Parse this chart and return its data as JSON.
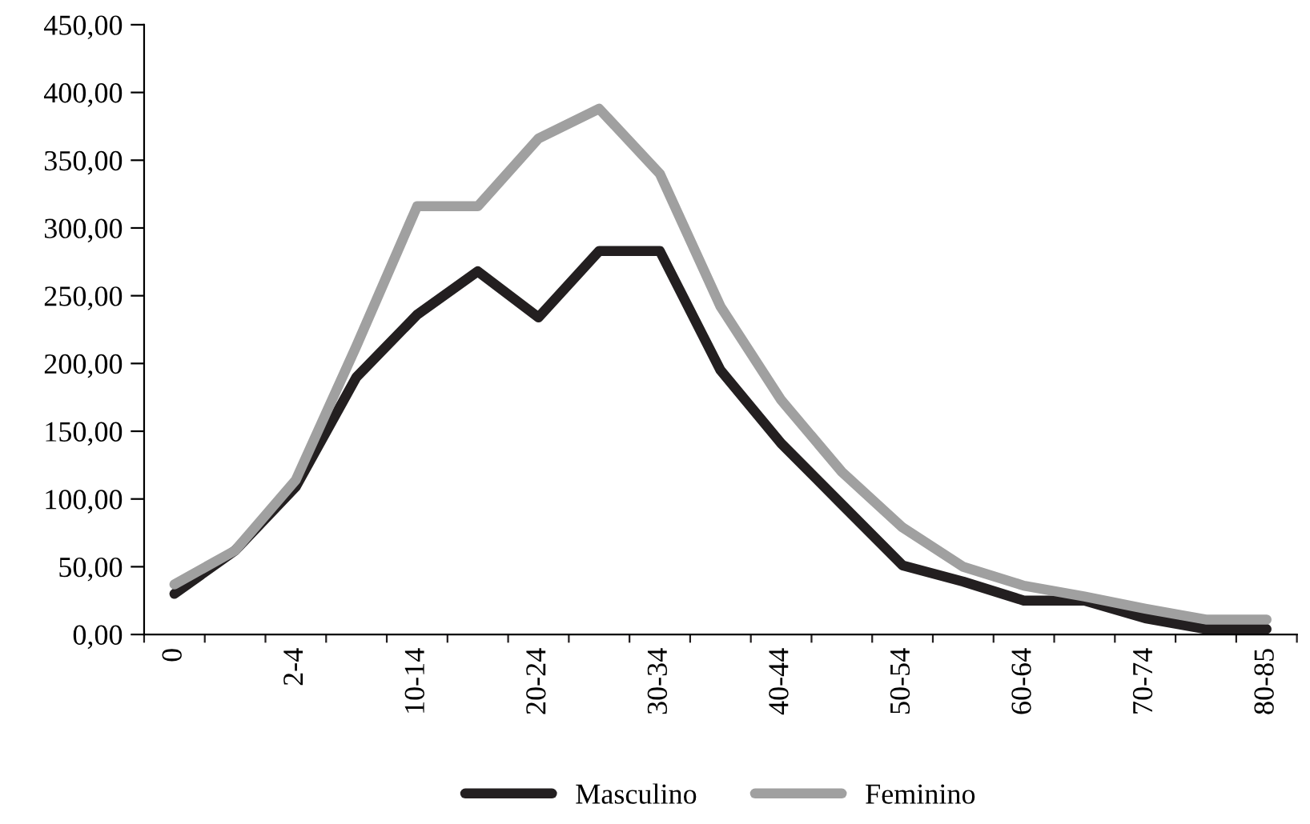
{
  "chart_data": {
    "type": "line",
    "categories": [
      "0",
      null,
      "2-4",
      null,
      "10-14",
      null,
      "20-24",
      null,
      "30-34",
      null,
      "40-44",
      null,
      "50-54",
      null,
      "60-64",
      null,
      "70-74",
      null,
      "80-85"
    ],
    "series": [
      {
        "name": "Masculino",
        "color": "#231f20",
        "values": [
          30,
          62,
          109,
          190,
          236,
          268,
          234,
          283,
          283,
          195,
          141,
          96,
          51,
          39,
          25,
          25,
          12,
          4,
          4
        ]
      },
      {
        "name": "Feminino",
        "color": "#a0a0a0",
        "values": [
          37,
          62,
          114,
          213,
          316,
          316,
          366,
          388,
          340,
          242,
          173,
          120,
          79,
          50,
          36,
          28,
          19,
          11,
          11
        ]
      }
    ],
    "ylim": [
      0,
      450
    ],
    "yticks": [
      {
        "value": 0,
        "label": "0,00"
      },
      {
        "value": 50,
        "label": "50,00"
      },
      {
        "value": 100,
        "label": "100,00"
      },
      {
        "value": 150,
        "label": "150,00"
      },
      {
        "value": 200,
        "label": "200,00"
      },
      {
        "value": 250,
        "label": "250,00"
      },
      {
        "value": 300,
        "label": "300,00"
      },
      {
        "value": 350,
        "label": "350,00"
      },
      {
        "value": 400,
        "label": "400,00"
      },
      {
        "value": 450,
        "label": "450,00"
      }
    ],
    "legend": "bottom",
    "grid": false,
    "marker": "none",
    "line_style": "solid"
  }
}
